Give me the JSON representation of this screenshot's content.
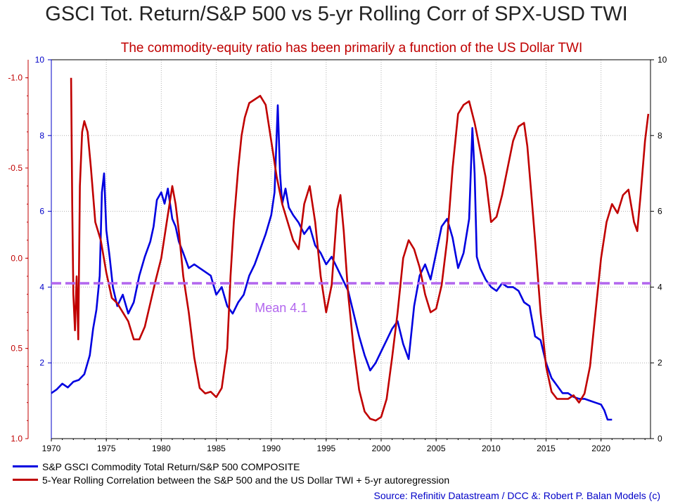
{
  "chart_data": {
    "type": "line",
    "title": "GSCI Tot. Return/S&P 500 vs 5-yr Rolling Corr of SPX-USD TWI",
    "subtitle": "The commodity-equity ratio has been primarily a function of the US Dollar TWI",
    "x_ticks": [
      "1970",
      "1975",
      "1980",
      "1985",
      "1990",
      "1995",
      "2000",
      "2005",
      "2010",
      "2015",
      "2020"
    ],
    "xlim": [
      1970,
      2024.5
    ],
    "left_outer_axis": {
      "ticks": [
        "-1.0",
        "-0.5",
        "0.0",
        "0.5",
        "1.0"
      ],
      "values": [
        -1.0,
        -0.5,
        0.0,
        0.5,
        1.0
      ],
      "range": [
        -1.1,
        1.0
      ],
      "inverted": true,
      "color": "#c00000"
    },
    "left_inner_axis": {
      "ticks": [
        "2",
        "4",
        "6",
        "8",
        "10"
      ],
      "values": [
        2,
        4,
        6,
        8,
        10
      ],
      "range": [
        0,
        10
      ],
      "color": "#0000c8"
    },
    "right_axis": {
      "ticks": [
        "0",
        "2",
        "4",
        "6",
        "8",
        "10"
      ],
      "values": [
        0,
        2,
        4,
        6,
        8,
        10
      ],
      "range": [
        0,
        10
      ],
      "color": "#000000"
    },
    "mean_line": {
      "value": 4.1,
      "label": "Mean 4.1",
      "color": "#b266ee"
    },
    "grid": true,
    "series": [
      {
        "name": "S&P GSCI Commodity Total Return/S&P 500 COMPOSITE",
        "color": "#0000e0",
        "axis": "left_inner",
        "x": [
          1970.0,
          1970.5,
          1971.0,
          1971.5,
          1972.0,
          1972.5,
          1973.0,
          1973.5,
          1973.8,
          1974.1,
          1974.4,
          1974.6,
          1974.8,
          1975.0,
          1975.3,
          1975.6,
          1976.0,
          1976.5,
          1977.0,
          1977.5,
          1978.0,
          1978.5,
          1979.0,
          1979.3,
          1979.6,
          1980.0,
          1980.3,
          1980.6,
          1981.0,
          1981.3,
          1981.6,
          1982.0,
          1982.5,
          1983.0,
          1983.5,
          1984.0,
          1984.5,
          1985.0,
          1985.5,
          1986.0,
          1986.5,
          1987.0,
          1987.5,
          1988.0,
          1988.5,
          1989.0,
          1989.5,
          1990.0,
          1990.3,
          1990.6,
          1990.8,
          1991.0,
          1991.3,
          1991.6,
          1992.0,
          1992.5,
          1993.0,
          1993.5,
          1994.0,
          1994.5,
          1995.0,
          1995.5,
          1996.0,
          1996.5,
          1997.0,
          1997.5,
          1998.0,
          1998.5,
          1999.0,
          1999.5,
          2000.0,
          2000.5,
          2001.0,
          2001.5,
          2002.0,
          2002.5,
          2003.0,
          2003.5,
          2004.0,
          2004.5,
          2005.0,
          2005.5,
          2006.0,
          2006.5,
          2007.0,
          2007.5,
          2008.0,
          2008.3,
          2008.5,
          2008.7,
          2009.0,
          2009.5,
          2010.0,
          2010.5,
          2011.0,
          2011.5,
          2012.0,
          2012.5,
          2013.0,
          2013.5,
          2014.0,
          2014.5,
          2015.0,
          2015.5,
          2016.0,
          2016.5,
          2017.0,
          2017.5,
          2018.0,
          2018.5,
          2019.0,
          2019.5,
          2020.0,
          2020.3,
          2020.6,
          2021.0
        ],
        "values": [
          1.2,
          1.3,
          1.45,
          1.35,
          1.5,
          1.55,
          1.7,
          2.2,
          2.9,
          3.4,
          4.3,
          6.5,
          7.0,
          5.5,
          4.8,
          4.0,
          3.5,
          3.8,
          3.3,
          3.6,
          4.3,
          4.8,
          5.2,
          5.6,
          6.3,
          6.5,
          6.2,
          6.6,
          5.8,
          5.6,
          5.2,
          4.9,
          4.5,
          4.6,
          4.5,
          4.4,
          4.3,
          3.8,
          4.0,
          3.5,
          3.3,
          3.6,
          3.8,
          4.3,
          4.6,
          5.0,
          5.4,
          5.9,
          6.5,
          8.8,
          7.0,
          6.2,
          6.6,
          6.1,
          5.9,
          5.7,
          5.4,
          5.6,
          5.1,
          4.9,
          4.6,
          4.8,
          4.5,
          4.2,
          3.9,
          3.3,
          2.7,
          2.2,
          1.8,
          2.0,
          2.3,
          2.6,
          2.9,
          3.1,
          2.5,
          2.1,
          3.5,
          4.3,
          4.6,
          4.2,
          4.9,
          5.6,
          5.8,
          5.3,
          4.5,
          4.9,
          5.8,
          8.2,
          7.0,
          4.8,
          4.5,
          4.2,
          4.0,
          3.9,
          4.1,
          4.0,
          4.0,
          3.9,
          3.6,
          3.5,
          2.7,
          2.6,
          2.0,
          1.6,
          1.4,
          1.2,
          1.2,
          1.1,
          1.05,
          1.05,
          1.0,
          0.95,
          0.9,
          0.75,
          0.5,
          0.5
        ]
      },
      {
        "name": "5-Year Rolling Correlation between the S&P 500 and the US Dollar TWI + 5-yr autoregression",
        "color": "#c00000",
        "axis": "left_outer",
        "x": [
          1971.8,
          1971.9,
          1972.0,
          1972.15,
          1972.3,
          1972.45,
          1972.6,
          1972.8,
          1973.0,
          1973.3,
          1973.6,
          1974.0,
          1974.5,
          1975.0,
          1975.5,
          1976.0,
          1976.5,
          1977.0,
          1977.5,
          1978.0,
          1978.5,
          1979.0,
          1979.5,
          1980.0,
          1980.5,
          1981.0,
          1981.3,
          1981.6,
          1982.0,
          1982.5,
          1983.0,
          1983.5,
          1984.0,
          1984.5,
          1985.0,
          1985.5,
          1986.0,
          1986.3,
          1986.6,
          1987.0,
          1987.3,
          1987.6,
          1988.0,
          1988.5,
          1989.0,
          1989.5,
          1990.0,
          1990.5,
          1991.0,
          1991.5,
          1992.0,
          1992.5,
          1993.0,
          1993.5,
          1994.0,
          1994.5,
          1995.0,
          1995.5,
          1996.0,
          1996.3,
          1996.6,
          1997.0,
          1997.5,
          1998.0,
          1998.5,
          1999.0,
          1999.5,
          2000.0,
          2000.5,
          2001.0,
          2001.5,
          2002.0,
          2002.5,
          2003.0,
          2003.5,
          2004.0,
          2004.5,
          2005.0,
          2005.5,
          2006.0,
          2006.5,
          2007.0,
          2007.5,
          2008.0,
          2008.5,
          2009.0,
          2009.5,
          2010.0,
          2010.5,
          2011.0,
          2011.5,
          2012.0,
          2012.5,
          2013.0,
          2013.3,
          2013.6,
          2014.0,
          2014.5,
          2015.0,
          2015.5,
          2016.0,
          2016.5,
          2017.0,
          2017.5,
          2018.0,
          2018.5,
          2019.0,
          2019.5,
          2020.0,
          2020.5,
          2021.0,
          2021.5,
          2022.0,
          2022.5,
          2023.0,
          2023.3,
          2023.6,
          2024.0,
          2024.3
        ],
        "values": [
          -1.0,
          -0.3,
          0.2,
          0.4,
          0.1,
          0.45,
          -0.4,
          -0.7,
          -0.76,
          -0.7,
          -0.5,
          -0.2,
          -0.1,
          0.08,
          0.22,
          0.25,
          0.3,
          0.35,
          0.45,
          0.45,
          0.38,
          0.25,
          0.12,
          0.0,
          -0.2,
          -0.4,
          -0.3,
          -0.15,
          0.1,
          0.3,
          0.55,
          0.72,
          0.75,
          0.74,
          0.77,
          0.72,
          0.5,
          0.1,
          -0.2,
          -0.5,
          -0.68,
          -0.78,
          -0.86,
          -0.88,
          -0.9,
          -0.85,
          -0.65,
          -0.45,
          -0.3,
          -0.2,
          -0.1,
          -0.05,
          -0.3,
          -0.4,
          -0.2,
          0.1,
          0.3,
          0.15,
          -0.27,
          -0.35,
          -0.15,
          0.2,
          0.5,
          0.73,
          0.85,
          0.89,
          0.9,
          0.88,
          0.78,
          0.55,
          0.3,
          0.0,
          -0.1,
          -0.05,
          0.05,
          0.2,
          0.3,
          0.28,
          0.15,
          -0.1,
          -0.5,
          -0.8,
          -0.85,
          -0.87,
          -0.75,
          -0.6,
          -0.45,
          -0.2,
          -0.23,
          -0.35,
          -0.5,
          -0.65,
          -0.73,
          -0.75,
          -0.62,
          -0.4,
          -0.1,
          0.3,
          0.6,
          0.74,
          0.78,
          0.78,
          0.78,
          0.76,
          0.8,
          0.75,
          0.6,
          0.3,
          0.0,
          -0.2,
          -0.3,
          -0.25,
          -0.35,
          -0.38,
          -0.2,
          -0.15,
          -0.35,
          -0.65,
          -0.8
        ]
      }
    ]
  },
  "legend": {
    "items": [
      {
        "label": "S&P GSCI Commodity Total Return/S&P 500 COMPOSITE",
        "color": "#0000e0"
      },
      {
        "label": "5-Year Rolling Correlation between the S&P 500 and the US Dollar TWI + 5-yr autoregression",
        "color": "#c00000"
      }
    ]
  },
  "source": "Source: Refinitiv Datastream / DCC &: Robert P. Balan Models (c)"
}
